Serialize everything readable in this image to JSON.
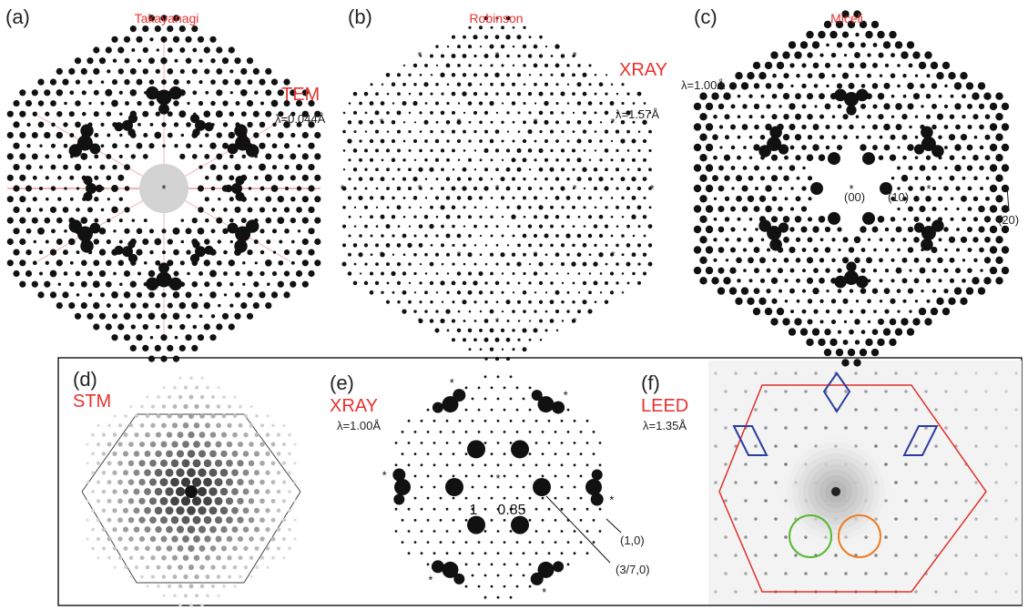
{
  "colors": {
    "label_red": "#e8322d",
    "ink": "#111111",
    "frame": "#222222",
    "leed_background": "#f3f3f3",
    "hexagon_red": "#e0312a",
    "diamond_blue": "#2b3d9e",
    "circle_green": "#56b830",
    "circle_orange": "#ef7d22",
    "center_disk": "#d3d3d3",
    "guide_line": "#f2a1a1"
  },
  "panels": [
    {
      "letter": "(a)",
      "author": "Takayanagi",
      "method": "TEM",
      "wavelength": "λ=0.044Å"
    },
    {
      "letter": "(b)",
      "author": "Robinson",
      "method": "XRAY",
      "wavelength": "λ=1.57Å"
    },
    {
      "letter": "(c)",
      "author": "Miceli",
      "wavelength": "λ=1.00Å",
      "miller": [
        "(00)",
        "(10)",
        "(20)"
      ]
    },
    {
      "letter": "(d)",
      "method": "STM"
    },
    {
      "letter": "(e)",
      "method": "XRAY",
      "wavelength": "λ=1.00Å",
      "miller": [
        "(1,0)",
        "(3/7,0)"
      ],
      "ratio_labels": [
        "1",
        "0.85"
      ]
    },
    {
      "letter": "(f)",
      "method": "LEED",
      "wavelength": "λ=1.35Å"
    }
  ],
  "symbols": {
    "star": "*"
  },
  "icons": [
    "asterisk-icon",
    "hexagon-outline-icon",
    "diamond-icon",
    "circle-outline-icon"
  ]
}
